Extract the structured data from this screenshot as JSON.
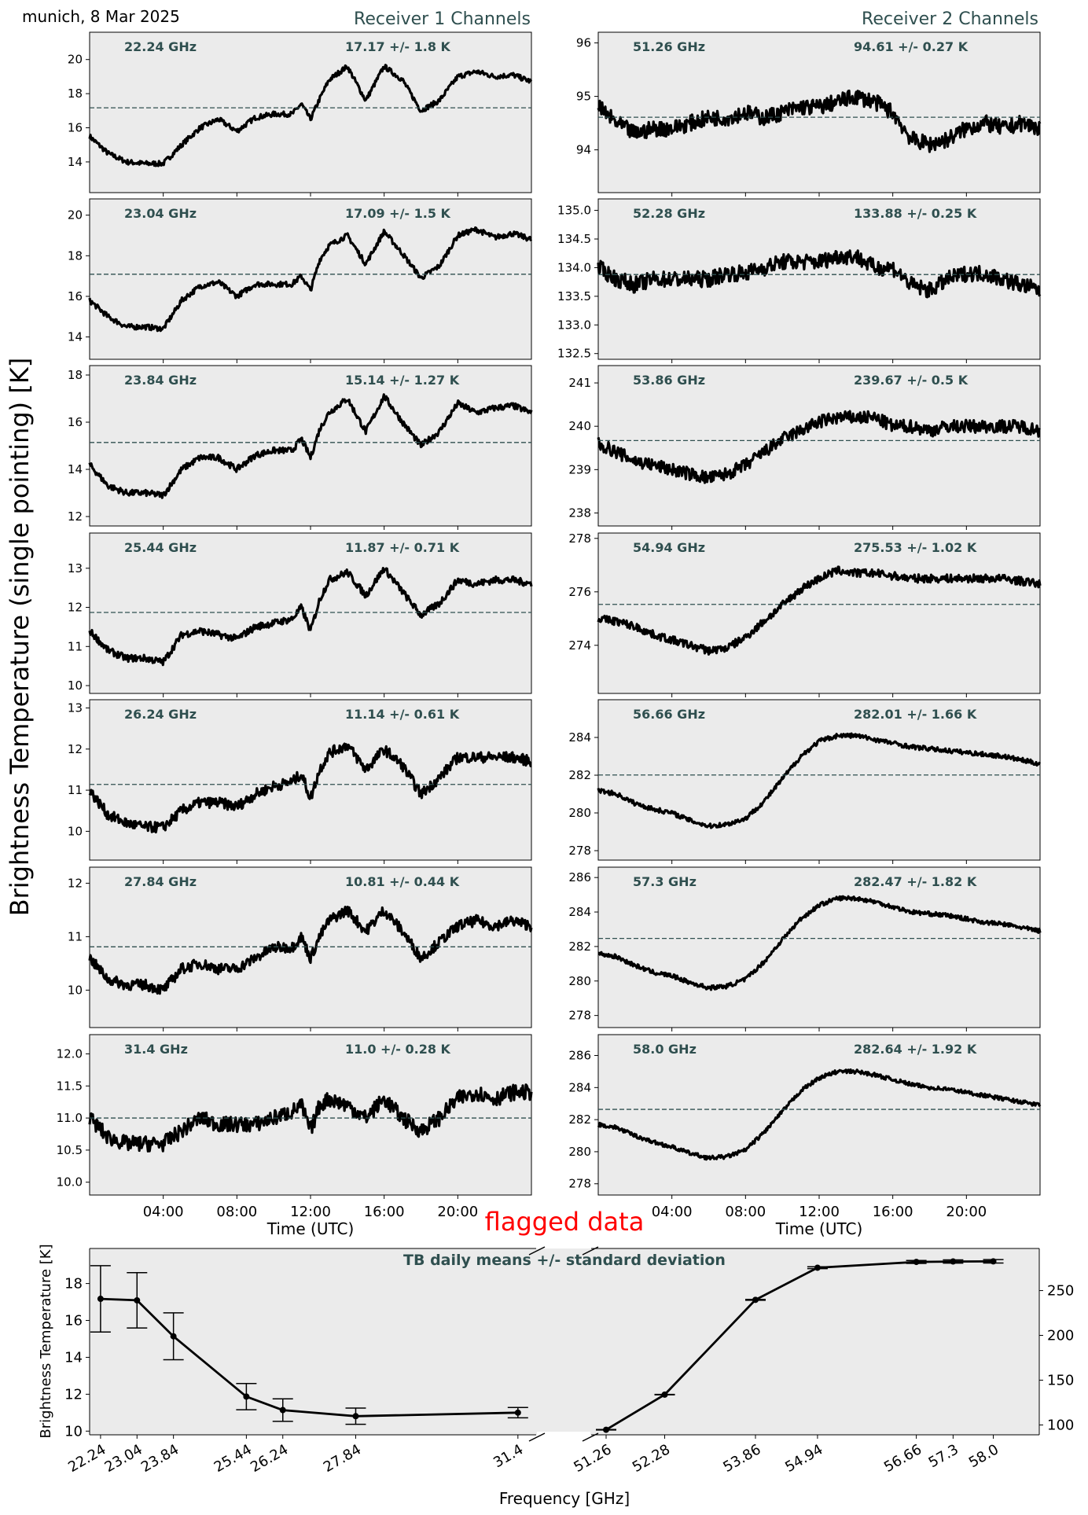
{
  "header": {
    "location_date": "munich, 8 Mar 2025",
    "receiver1_title": "Receiver 1 Channels",
    "receiver2_title": "Receiver 2 Channels",
    "ylabel": "Brightness Temperature (single pointing) [K]",
    "flag_text": "flagged data"
  },
  "colors": {
    "panel_bg": "#ebebeb",
    "trace": "#000000",
    "label": "#2f4f4f",
    "flag": "#ff0000"
  },
  "time_axis": {
    "xlabel": "Time (UTC)",
    "range_hours": [
      0,
      24
    ],
    "ticks": [
      "04:00",
      "08:00",
      "12:00",
      "16:00",
      "20:00"
    ]
  },
  "chart_data": [
    {
      "type": "line",
      "receiver": 1,
      "frequency": "22.24 GHz",
      "stats": "17.17 +/- 1.8 K",
      "mean": 17.17,
      "ylim": [
        12.2,
        21.6
      ],
      "yticks": [
        "14",
        "16",
        "18",
        "20"
      ],
      "x_hours": [
        0,
        1,
        2,
        3,
        4,
        5,
        6,
        7,
        8,
        9,
        10,
        11,
        11.5,
        12,
        12.5,
        13,
        14,
        15,
        16,
        17,
        18,
        19,
        20,
        21,
        22,
        23,
        24
      ],
      "values": [
        15.5,
        14.5,
        14.0,
        13.9,
        13.9,
        15.0,
        16.0,
        16.5,
        15.8,
        16.6,
        16.8,
        16.8,
        17.4,
        16.5,
        17.7,
        18.8,
        19.6,
        17.6,
        19.6,
        18.8,
        17.0,
        17.6,
        19.0,
        19.3,
        19.0,
        19.1,
        18.7
      ],
      "noise": 0.15
    },
    {
      "type": "line",
      "receiver": 1,
      "frequency": "23.04 GHz",
      "stats": "17.09 +/- 1.5 K",
      "mean": 17.09,
      "ylim": [
        12.9,
        20.8
      ],
      "yticks": [
        "14",
        "16",
        "18",
        "20"
      ],
      "x_hours": [
        0,
        1,
        2,
        3,
        4,
        5,
        6,
        7,
        8,
        9,
        10,
        11,
        11.5,
        12,
        12.5,
        13,
        14,
        15,
        16,
        17,
        18,
        19,
        20,
        21,
        22,
        23,
        24
      ],
      "values": [
        15.8,
        15.0,
        14.5,
        14.5,
        14.4,
        15.8,
        16.5,
        16.7,
        16.0,
        16.6,
        16.6,
        16.6,
        17.0,
        16.3,
        17.8,
        18.5,
        19.0,
        17.6,
        19.2,
        18.1,
        16.9,
        17.5,
        19.0,
        19.3,
        18.9,
        19.1,
        18.8
      ],
      "noise": 0.13
    },
    {
      "type": "line",
      "receiver": 1,
      "frequency": "23.84 GHz",
      "stats": "15.14 +/- 1.27 K",
      "mean": 15.14,
      "ylim": [
        11.6,
        18.4
      ],
      "yticks": [
        "12",
        "14",
        "16",
        "18"
      ],
      "x_hours": [
        0,
        1,
        2,
        3,
        4,
        5,
        6,
        7,
        8,
        9,
        10,
        11,
        11.5,
        12,
        12.5,
        13,
        14,
        15,
        16,
        17,
        18,
        19,
        20,
        21,
        22,
        23,
        24
      ],
      "values": [
        14.2,
        13.3,
        13.0,
        13.0,
        12.9,
        14.0,
        14.5,
        14.5,
        14.0,
        14.6,
        14.8,
        14.8,
        15.3,
        14.5,
        15.7,
        16.4,
        17.0,
        15.6,
        17.1,
        16.0,
        15.0,
        15.6,
        16.8,
        16.4,
        16.6,
        16.7,
        16.4
      ],
      "noise": 0.13
    },
    {
      "type": "line",
      "receiver": 1,
      "frequency": "25.44 GHz",
      "stats": "11.87 +/- 0.71 K",
      "mean": 11.87,
      "ylim": [
        9.8,
        13.9
      ],
      "yticks": [
        "10",
        "11",
        "12",
        "13"
      ],
      "x_hours": [
        0,
        1,
        2,
        3,
        4,
        5,
        6,
        7,
        8,
        9,
        10,
        11,
        11.5,
        12,
        12.5,
        13,
        14,
        15,
        16,
        17,
        18,
        19,
        20,
        21,
        22,
        23,
        24
      ],
      "values": [
        11.4,
        10.9,
        10.7,
        10.7,
        10.6,
        11.3,
        11.4,
        11.3,
        11.2,
        11.5,
        11.6,
        11.7,
        12.0,
        11.4,
        12.2,
        12.7,
        12.9,
        12.3,
        13.0,
        12.4,
        11.8,
        12.1,
        12.7,
        12.6,
        12.7,
        12.7,
        12.6
      ],
      "noise": 0.09
    },
    {
      "type": "line",
      "receiver": 1,
      "frequency": "26.24 GHz",
      "stats": "11.14 +/- 0.61 K",
      "mean": 11.14,
      "ylim": [
        9.3,
        13.2
      ],
      "yticks": [
        "10",
        "11",
        "12",
        "13"
      ],
      "x_hours": [
        0,
        1,
        2,
        3,
        4,
        5,
        6,
        7,
        8,
        9,
        10,
        11,
        11.5,
        12,
        12.5,
        13,
        14,
        15,
        16,
        17,
        18,
        19,
        20,
        21,
        22,
        23,
        24
      ],
      "values": [
        11.0,
        10.4,
        10.2,
        10.1,
        10.1,
        10.5,
        10.7,
        10.7,
        10.6,
        10.9,
        11.1,
        11.2,
        11.4,
        10.8,
        11.5,
        11.9,
        12.1,
        11.5,
        12.0,
        11.6,
        10.9,
        11.3,
        11.8,
        11.8,
        11.8,
        11.8,
        11.7
      ],
      "noise": 0.13
    },
    {
      "type": "line",
      "receiver": 1,
      "frequency": "27.84 GHz",
      "stats": "10.81 +/- 0.44 K",
      "mean": 10.81,
      "ylim": [
        9.3,
        12.3
      ],
      "yticks": [
        "10",
        "11",
        "12"
      ],
      "x_hours": [
        0,
        1,
        2,
        3,
        4,
        5,
        6,
        7,
        8,
        9,
        10,
        11,
        11.5,
        12,
        12.5,
        13,
        14,
        15,
        16,
        17,
        18,
        19,
        20,
        21,
        22,
        23,
        24
      ],
      "values": [
        10.6,
        10.2,
        10.1,
        10.1,
        10.0,
        10.4,
        10.5,
        10.4,
        10.4,
        10.6,
        10.8,
        10.8,
        11.0,
        10.6,
        11.0,
        11.3,
        11.5,
        11.1,
        11.5,
        11.1,
        10.6,
        10.9,
        11.2,
        11.3,
        11.2,
        11.3,
        11.2
      ],
      "noise": 0.1
    },
    {
      "type": "line",
      "receiver": 1,
      "frequency": "31.4 GHz",
      "stats": "11.0 +/- 0.28 K",
      "mean": 11.0,
      "ylim": [
        9.8,
        12.3
      ],
      "yticks": [
        "10.0",
        "10.5",
        "11.0",
        "11.5",
        "12.0"
      ],
      "x_hours": [
        0,
        1,
        2,
        3,
        4,
        5,
        6,
        7,
        8,
        9,
        10,
        11,
        11.5,
        12,
        12.5,
        13,
        14,
        15,
        16,
        17,
        18,
        19,
        20,
        21,
        22,
        23,
        24
      ],
      "values": [
        11.0,
        10.7,
        10.6,
        10.6,
        10.6,
        10.8,
        11.0,
        10.9,
        10.9,
        10.9,
        11.0,
        11.1,
        11.2,
        10.8,
        11.2,
        11.3,
        11.2,
        11.0,
        11.3,
        11.0,
        10.8,
        11.0,
        11.3,
        11.4,
        11.3,
        11.4,
        11.4
      ],
      "noise": 0.12
    },
    {
      "type": "line",
      "receiver": 2,
      "frequency": "51.26 GHz",
      "stats": "94.61 +/- 0.27 K",
      "mean": 94.61,
      "ylim": [
        93.2,
        96.2
      ],
      "yticks": [
        "94",
        "95",
        "96"
      ],
      "x_hours": [
        0,
        1,
        2,
        3,
        4,
        5,
        6,
        7,
        8,
        9,
        10,
        11,
        12,
        13,
        14,
        15,
        16,
        17,
        18,
        19,
        20,
        21,
        22,
        23,
        24
      ],
      "values": [
        94.8,
        94.5,
        94.3,
        94.4,
        94.4,
        94.5,
        94.6,
        94.6,
        94.7,
        94.6,
        94.7,
        94.8,
        94.8,
        94.9,
        95.0,
        94.9,
        94.7,
        94.2,
        94.1,
        94.2,
        94.4,
        94.5,
        94.4,
        94.5,
        94.4
      ],
      "noise": 0.15
    },
    {
      "type": "line",
      "receiver": 2,
      "frequency": "52.28 GHz",
      "stats": "133.88 +/- 0.25 K",
      "mean": 133.88,
      "ylim": [
        132.4,
        135.2
      ],
      "yticks": [
        "132.5",
        "133.0",
        "133.5",
        "134.0",
        "134.5",
        "135.0"
      ],
      "x_hours": [
        0,
        1,
        2,
        3,
        4,
        5,
        6,
        7,
        8,
        9,
        10,
        11,
        12,
        13,
        14,
        15,
        16,
        17,
        18,
        19,
        20,
        21,
        22,
        23,
        24
      ],
      "values": [
        134.0,
        133.8,
        133.7,
        133.8,
        133.8,
        133.8,
        133.8,
        133.9,
        133.9,
        134.0,
        134.1,
        134.1,
        134.1,
        134.2,
        134.2,
        134.0,
        134.0,
        133.7,
        133.6,
        133.8,
        133.9,
        133.9,
        133.8,
        133.7,
        133.6
      ],
      "noise": 0.14
    },
    {
      "type": "line",
      "receiver": 2,
      "frequency": "53.86 GHz",
      "stats": "239.67 +/- 0.5 K",
      "mean": 239.67,
      "ylim": [
        237.7,
        241.4
      ],
      "yticks": [
        "238",
        "239",
        "240",
        "241"
      ],
      "x_hours": [
        0,
        1,
        2,
        3,
        4,
        5,
        6,
        7,
        8,
        9,
        10,
        11,
        12,
        13,
        14,
        15,
        16,
        17,
        18,
        19,
        20,
        21,
        22,
        23,
        24
      ],
      "values": [
        239.6,
        239.4,
        239.2,
        239.1,
        239.0,
        238.9,
        238.8,
        238.9,
        239.1,
        239.4,
        239.7,
        239.9,
        240.1,
        240.2,
        240.2,
        240.2,
        240.0,
        240.0,
        239.9,
        240.0,
        240.0,
        240.0,
        240.0,
        240.0,
        239.9
      ],
      "noise": 0.15
    },
    {
      "type": "line",
      "receiver": 2,
      "frequency": "54.94 GHz",
      "stats": "275.53 +/- 1.02 K",
      "mean": 275.53,
      "ylim": [
        272.2,
        278.2
      ],
      "yticks": [
        "274",
        "276",
        "278"
      ],
      "x_hours": [
        0,
        1,
        2,
        3,
        4,
        5,
        6,
        7,
        8,
        9,
        10,
        11,
        12,
        13,
        14,
        15,
        16,
        17,
        18,
        19,
        20,
        21,
        22,
        23,
        24
      ],
      "values": [
        275.0,
        274.9,
        274.7,
        274.4,
        274.2,
        274.0,
        273.8,
        273.9,
        274.3,
        274.9,
        275.5,
        276.1,
        276.5,
        276.8,
        276.7,
        276.7,
        276.6,
        276.5,
        276.5,
        276.5,
        276.5,
        276.5,
        276.5,
        276.4,
        276.3
      ],
      "noise": 0.15
    },
    {
      "type": "line",
      "receiver": 2,
      "frequency": "56.66 GHz",
      "stats": "282.01 +/- 1.66 K",
      "mean": 282.01,
      "ylim": [
        277.5,
        286.0
      ],
      "yticks": [
        "278",
        "280",
        "282",
        "284"
      ],
      "x_hours": [
        0,
        1,
        2,
        3,
        4,
        5,
        6,
        7,
        8,
        9,
        10,
        11,
        12,
        13,
        14,
        15,
        16,
        17,
        18,
        19,
        20,
        21,
        22,
        23,
        24
      ],
      "values": [
        281.2,
        281.0,
        280.5,
        280.2,
        280.0,
        279.6,
        279.3,
        279.4,
        279.7,
        280.6,
        281.8,
        283.0,
        283.8,
        284.1,
        284.1,
        283.9,
        283.7,
        283.5,
        283.4,
        283.3,
        283.2,
        283.1,
        283.0,
        282.8,
        282.6
      ],
      "noise": 0.12
    },
    {
      "type": "line",
      "receiver": 2,
      "frequency": "57.3 GHz",
      "stats": "282.47 +/- 1.82 K",
      "mean": 282.47,
      "ylim": [
        277.3,
        286.6
      ],
      "yticks": [
        "278",
        "280",
        "282",
        "284",
        "286"
      ],
      "x_hours": [
        0,
        1,
        2,
        3,
        4,
        5,
        6,
        7,
        8,
        9,
        10,
        11,
        12,
        13,
        14,
        15,
        16,
        17,
        18,
        19,
        20,
        21,
        22,
        23,
        24
      ],
      "values": [
        281.6,
        281.4,
        280.9,
        280.5,
        280.3,
        279.9,
        279.6,
        279.7,
        280.1,
        281.1,
        282.4,
        283.6,
        284.4,
        284.8,
        284.8,
        284.6,
        284.3,
        284.0,
        283.9,
        283.8,
        283.6,
        283.4,
        283.3,
        283.1,
        282.9
      ],
      "noise": 0.12
    },
    {
      "type": "line",
      "receiver": 2,
      "frequency": "58.0 GHz",
      "stats": "282.64 +/- 1.92 K",
      "mean": 282.64,
      "ylim": [
        277.3,
        287.3
      ],
      "yticks": [
        "278",
        "280",
        "282",
        "284",
        "286"
      ],
      "x_hours": [
        0,
        1,
        2,
        3,
        4,
        5,
        6,
        7,
        8,
        9,
        10,
        11,
        12,
        13,
        14,
        15,
        16,
        17,
        18,
        19,
        20,
        21,
        22,
        23,
        24
      ],
      "values": [
        281.7,
        281.5,
        281.0,
        280.6,
        280.3,
        279.9,
        279.6,
        279.7,
        280.1,
        281.2,
        282.5,
        283.8,
        284.6,
        285.0,
        285.0,
        284.8,
        284.5,
        284.2,
        284.0,
        283.9,
        283.7,
        283.5,
        283.3,
        283.1,
        282.9
      ],
      "noise": 0.12
    },
    {
      "type": "line",
      "role": "daily-means",
      "title": "TB daily means +/- standard deviation",
      "xlabel": "Frequency [GHz]",
      "ylabel_left": "Brightness Temperature [K]",
      "receiver1": {
        "frequencies": [
          22.24,
          23.04,
          23.84,
          25.44,
          26.24,
          27.84,
          31.4
        ],
        "tick_labels": [
          "22.24",
          "23.04",
          "23.84",
          "25.44",
          "26.24",
          "27.84",
          "31.4"
        ],
        "means": [
          17.17,
          17.09,
          15.14,
          11.87,
          11.14,
          10.81,
          11.0
        ],
        "stds": [
          1.8,
          1.5,
          1.27,
          0.71,
          0.61,
          0.44,
          0.28
        ],
        "ylim": [
          9.8,
          19.9
        ],
        "yticks": [
          "10",
          "12",
          "14",
          "16",
          "18"
        ],
        "xlim": [
          22.0,
          31.8
        ]
      },
      "receiver2": {
        "frequencies": [
          51.26,
          52.28,
          53.86,
          54.94,
          56.66,
          57.3,
          58.0
        ],
        "tick_labels": [
          "51.26",
          "52.28",
          "53.86",
          "54.94",
          "56.66",
          "57.3",
          "58.0"
        ],
        "means": [
          94.61,
          133.88,
          239.67,
          275.53,
          282.01,
          282.47,
          282.64
        ],
        "stds": [
          0.27,
          0.25,
          0.5,
          1.02,
          1.66,
          1.82,
          1.92
        ],
        "ylim": [
          89,
          297
        ],
        "yticks": [
          "100",
          "150",
          "200",
          "250"
        ],
        "xlim": [
          51.0,
          58.8
        ]
      }
    }
  ]
}
